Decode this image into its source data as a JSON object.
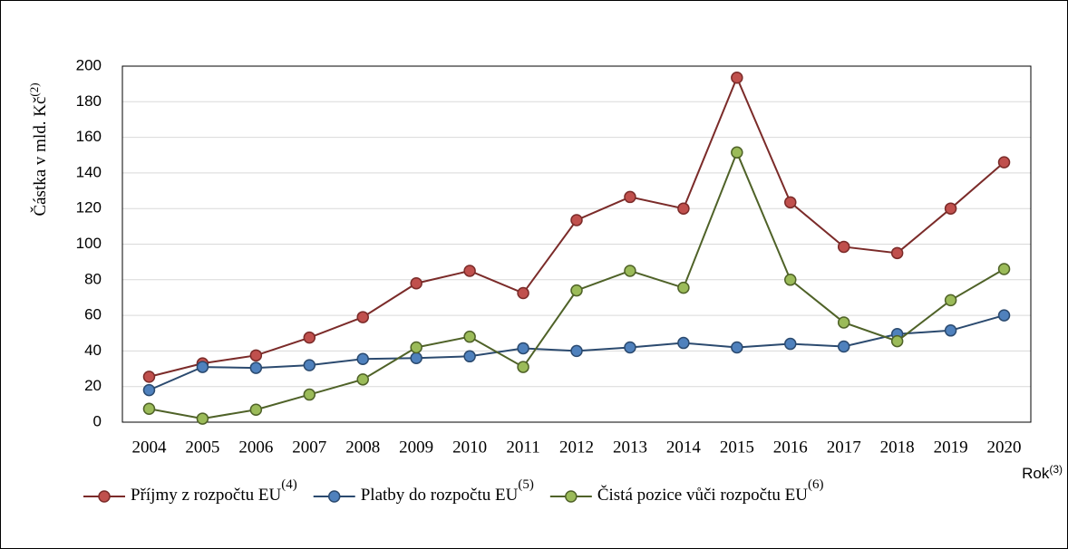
{
  "chart_data": {
    "type": "line",
    "y_label": "Částka v mld. Kč",
    "y_label_note": "(2)",
    "x_label": "Rok",
    "x_label_note": "(3)",
    "categories": [
      "2004",
      "2005",
      "2006",
      "2007",
      "2008",
      "2009",
      "2010",
      "2011",
      "2012",
      "2013",
      "2014",
      "2015",
      "2016",
      "2017",
      "2018",
      "2019",
      "2020"
    ],
    "series": [
      {
        "name": "Příjmy z rozpočtu EU",
        "note": "(4)",
        "color": "#c0504d",
        "values": [
          25.5,
          33,
          37.5,
          47.5,
          59,
          78,
          85,
          72.5,
          113.5,
          126.5,
          120,
          193.5,
          123.5,
          98.5,
          95,
          120,
          146
        ]
      },
      {
        "name": "Platby do rozpočtu EU",
        "note": "(5)",
        "color": "#4f81bd",
        "values": [
          18,
          31,
          30.5,
          32,
          35.5,
          36,
          37,
          41.5,
          40,
          42,
          44.5,
          42,
          44,
          42.5,
          49.5,
          51.5,
          60
        ]
      },
      {
        "name": "Čistá pozice vůči rozpočtu EU",
        "note": "(6)",
        "color": "#9bbb59",
        "values": [
          7.5,
          2,
          7,
          15.5,
          24,
          42,
          48,
          31,
          74,
          85,
          75.5,
          151.5,
          80,
          56,
          45.5,
          68.5,
          86
        ]
      }
    ],
    "ylim": [
      0,
      200
    ],
    "yticks": [
      0,
      20,
      40,
      60,
      80,
      100,
      120,
      140,
      160,
      180,
      200
    ],
    "grid": true,
    "legend": "bottom"
  }
}
